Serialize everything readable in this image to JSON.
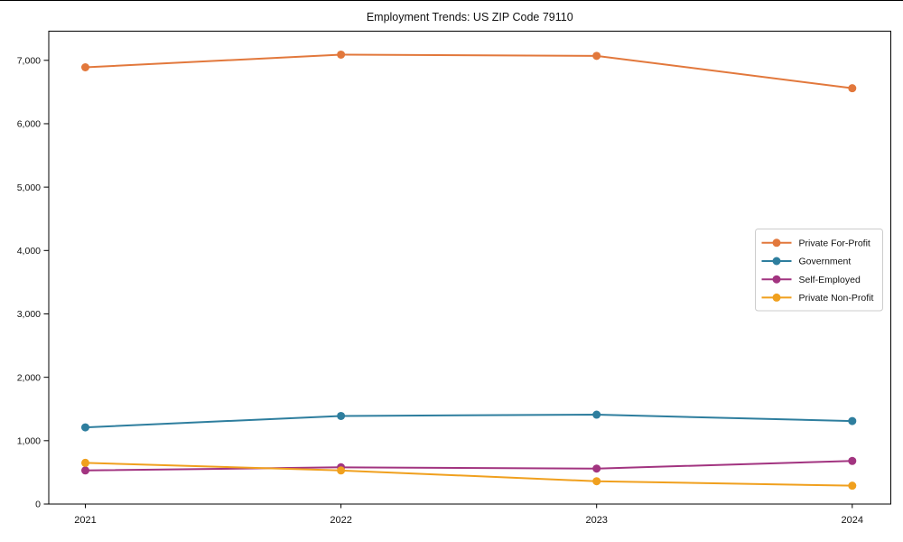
{
  "figure": {
    "title": "Employment Trends: US ZIP Code 79110"
  },
  "chart_data": {
    "type": "line",
    "title": "Employment Trends: US ZIP Code 79110",
    "categories": [
      "2021",
      "2022",
      "2023",
      "2024"
    ],
    "series": [
      {
        "name": "Private For-Profit",
        "color": "#E2783C",
        "values": [
          6890,
          7090,
          7070,
          6560
        ]
      },
      {
        "name": "Government",
        "color": "#2E7E9E",
        "values": [
          1210,
          1390,
          1410,
          1310
        ]
      },
      {
        "name": "Self-Employed",
        "color": "#A23480",
        "values": [
          530,
          580,
          560,
          680
        ]
      },
      {
        "name": "Private Non-Profit",
        "color": "#F0A01E",
        "values": [
          650,
          530,
          360,
          290
        ]
      }
    ],
    "xlabel": "",
    "ylabel": "",
    "ylim": [
      0,
      7460
    ],
    "y_ticks": [
      0,
      1000,
      2000,
      3000,
      4000,
      5000,
      6000,
      7000
    ],
    "y_tick_labels": [
      "0",
      "1,000",
      "2,000",
      "3,000",
      "4,000",
      "5,000",
      "6,000",
      "7,000"
    ],
    "grid": false,
    "legend_position": "center-right",
    "marker": "circle",
    "background": "#ffffff"
  }
}
